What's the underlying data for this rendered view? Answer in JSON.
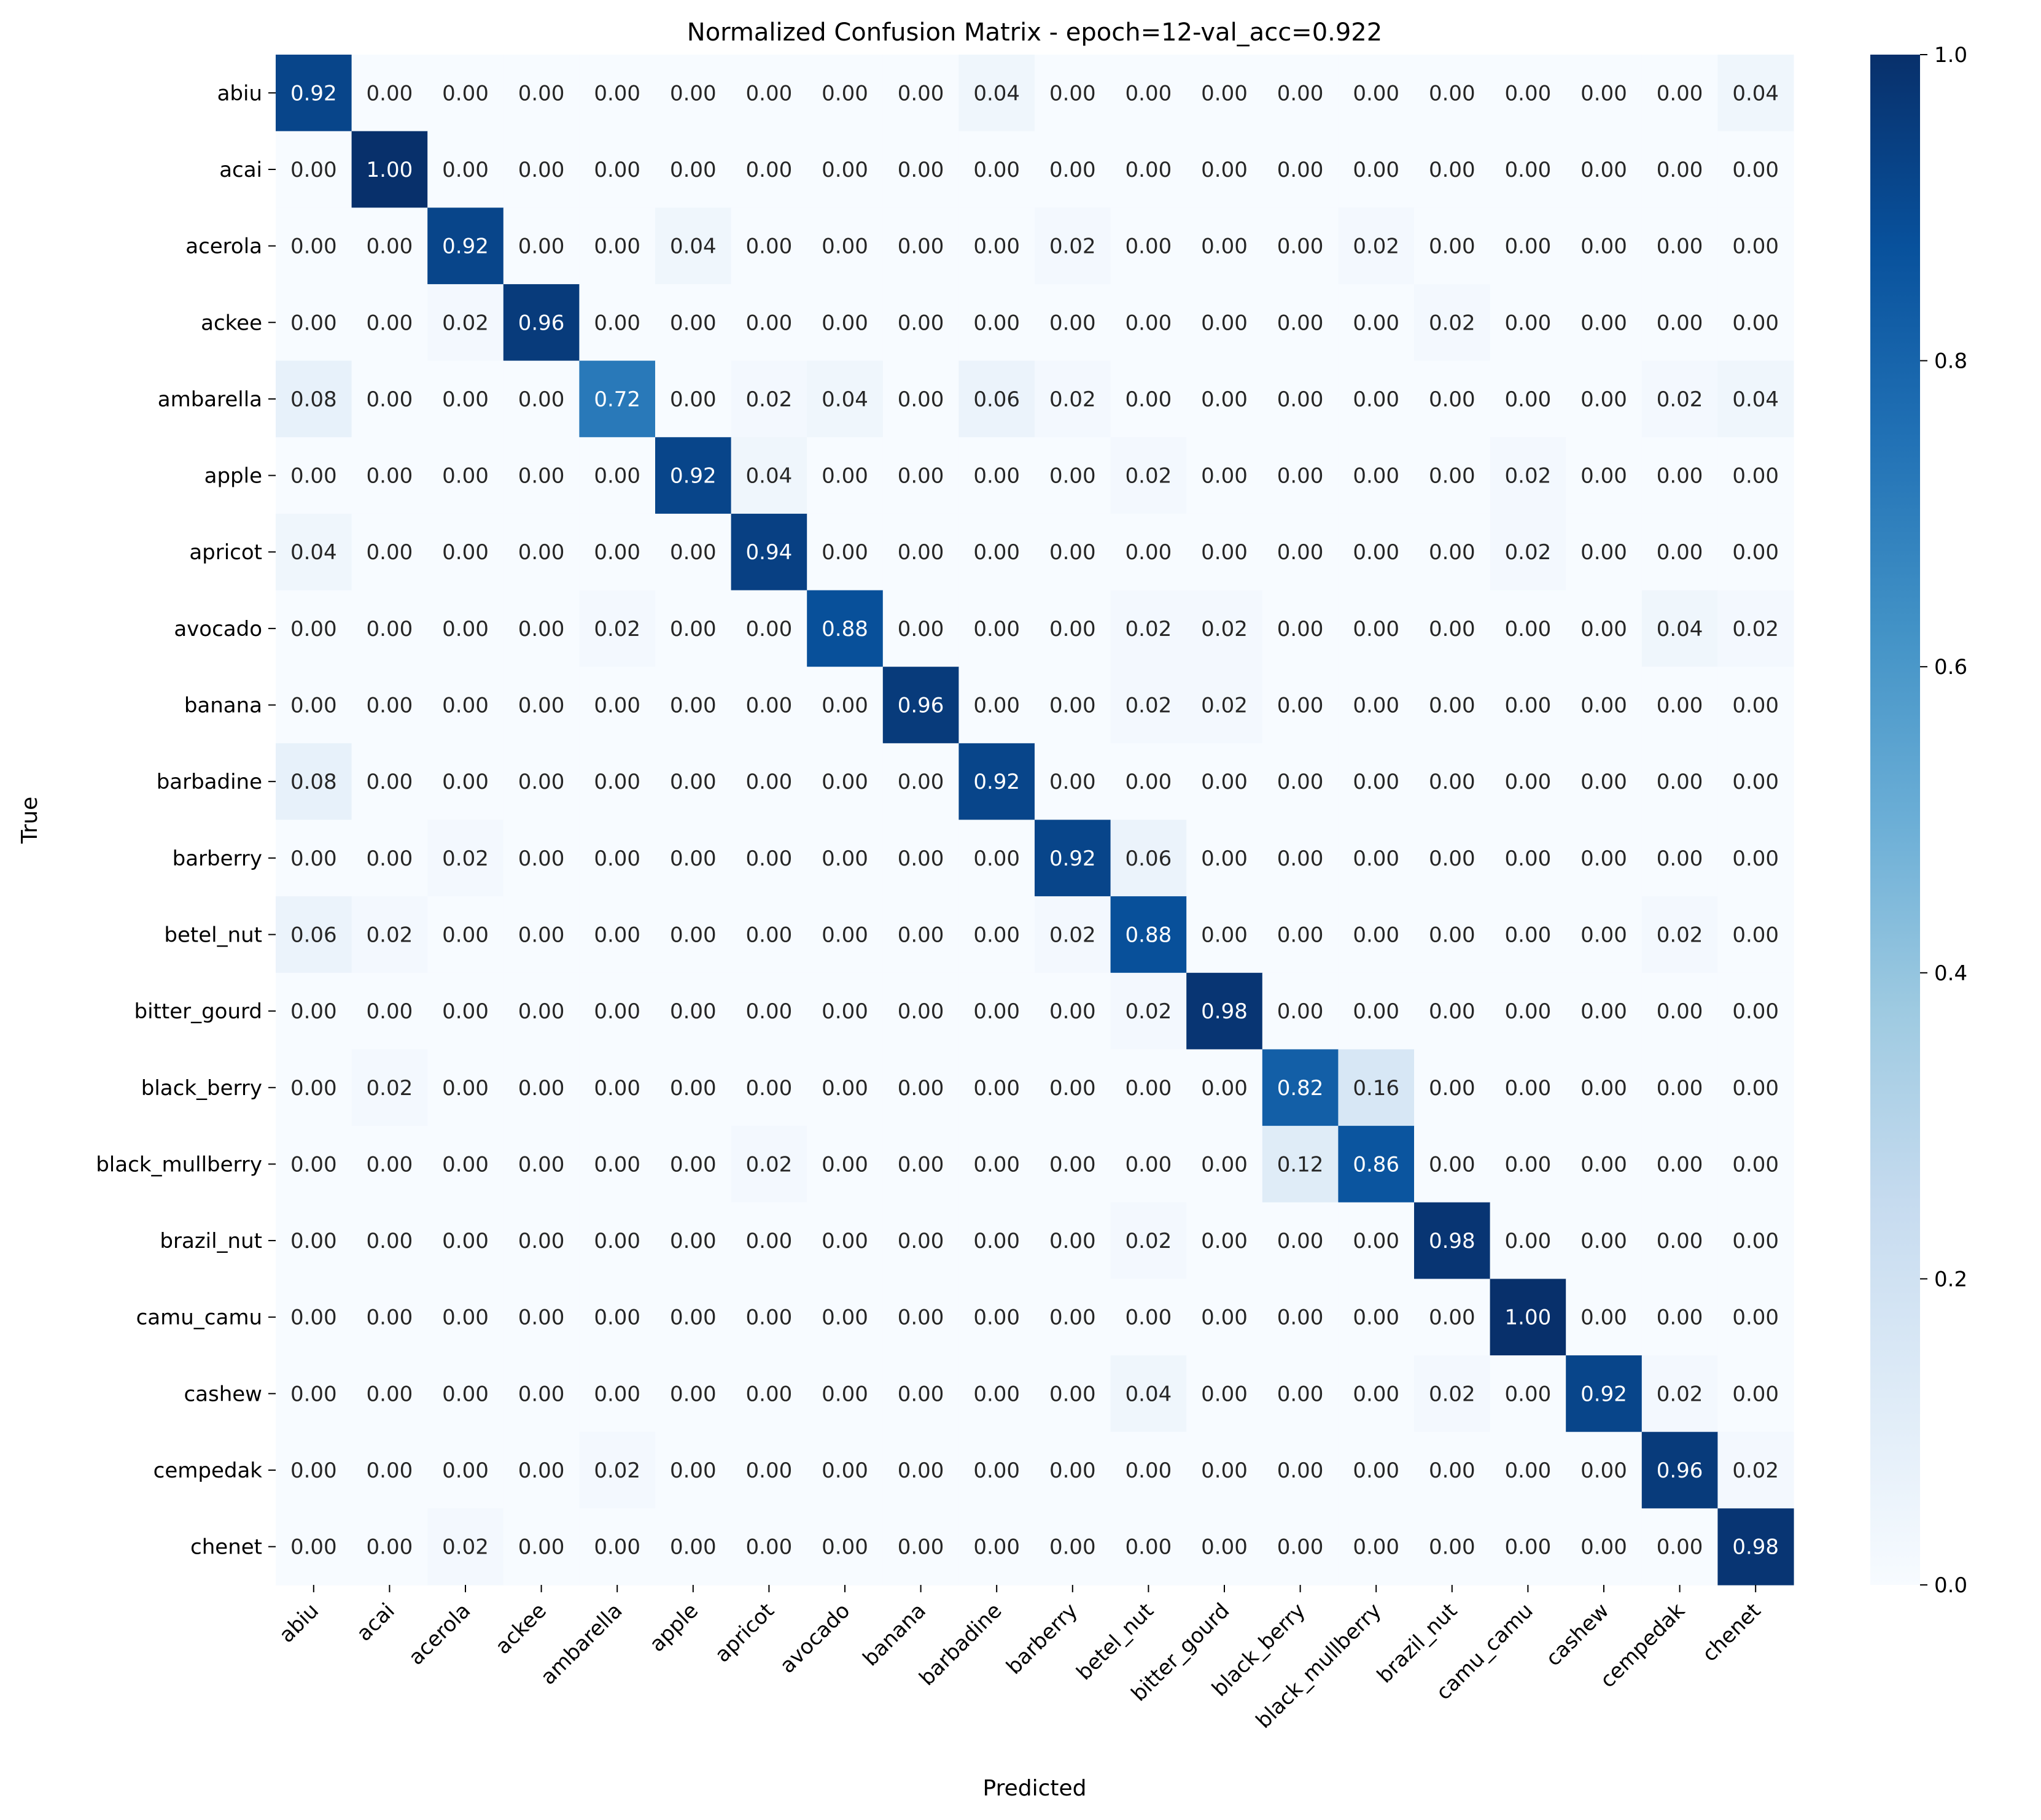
{
  "chart_data": {
    "type": "heatmap",
    "title": "Normalized Confusion Matrix - epoch=12-val_acc=0.922",
    "xlabel": "Predicted",
    "ylabel": "True",
    "colormap": "Blues",
    "vmin": 0.0,
    "vmax": 1.0,
    "colorbar_ticks": [
      "0.0",
      "0.2",
      "0.4",
      "0.6",
      "0.8",
      "1.0"
    ],
    "value_format": "0.00",
    "x_categories": [
      "abiu",
      "acai",
      "acerola",
      "ackee",
      "ambarella",
      "apple",
      "apricot",
      "avocado",
      "banana",
      "barbadine",
      "barberry",
      "betel_nut",
      "bitter_gourd",
      "black_berry",
      "black_mullberry",
      "brazil_nut",
      "camu_camu",
      "cashew",
      "cempedak",
      "chenet"
    ],
    "y_categories": [
      "abiu",
      "acai",
      "acerola",
      "ackee",
      "ambarella",
      "apple",
      "apricot",
      "avocado",
      "banana",
      "barbadine",
      "barberry",
      "betel_nut",
      "bitter_gourd",
      "black_berry",
      "black_mullberry",
      "brazil_nut",
      "camu_camu",
      "cashew",
      "cempedak",
      "chenet"
    ],
    "values": [
      [
        0.92,
        0,
        0,
        0,
        0,
        0,
        0,
        0,
        0,
        0.04,
        0,
        0,
        0,
        0,
        0,
        0,
        0,
        0,
        0,
        0.04
      ],
      [
        0,
        1.0,
        0,
        0,
        0,
        0,
        0,
        0,
        0,
        0,
        0,
        0,
        0,
        0,
        0,
        0,
        0,
        0,
        0,
        0
      ],
      [
        0,
        0,
        0.92,
        0,
        0,
        0.04,
        0,
        0,
        0,
        0,
        0.02,
        0,
        0,
        0,
        0.02,
        0,
        0,
        0,
        0,
        0
      ],
      [
        0,
        0,
        0.02,
        0.96,
        0,
        0,
        0,
        0,
        0,
        0,
        0,
        0,
        0,
        0,
        0,
        0.02,
        0,
        0,
        0,
        0
      ],
      [
        0.08,
        0,
        0,
        0,
        0.72,
        0,
        0.02,
        0.04,
        0,
        0.06,
        0.02,
        0,
        0,
        0,
        0,
        0,
        0,
        0,
        0.02,
        0.04
      ],
      [
        0,
        0,
        0,
        0,
        0,
        0.92,
        0.04,
        0,
        0,
        0,
        0,
        0.02,
        0,
        0,
        0,
        0,
        0.02,
        0,
        0,
        0
      ],
      [
        0.04,
        0,
        0,
        0,
        0,
        0,
        0.94,
        0,
        0,
        0,
        0,
        0,
        0,
        0,
        0,
        0,
        0.02,
        0,
        0,
        0
      ],
      [
        0,
        0,
        0,
        0,
        0.02,
        0,
        0,
        0.88,
        0,
        0,
        0,
        0.02,
        0.02,
        0,
        0,
        0,
        0,
        0,
        0.04,
        0.02
      ],
      [
        0,
        0,
        0,
        0,
        0,
        0,
        0,
        0,
        0.96,
        0,
        0,
        0.02,
        0.02,
        0,
        0,
        0,
        0,
        0,
        0,
        0
      ],
      [
        0.08,
        0,
        0,
        0,
        0,
        0,
        0,
        0,
        0,
        0.92,
        0,
        0,
        0,
        0,
        0,
        0,
        0,
        0,
        0,
        0
      ],
      [
        0,
        0,
        0.02,
        0,
        0,
        0,
        0,
        0,
        0,
        0,
        0.92,
        0.06,
        0,
        0,
        0,
        0,
        0,
        0,
        0,
        0
      ],
      [
        0.06,
        0.02,
        0,
        0,
        0,
        0,
        0,
        0,
        0,
        0,
        0.02,
        0.88,
        0,
        0,
        0,
        0,
        0,
        0,
        0.02,
        0
      ],
      [
        0,
        0,
        0,
        0,
        0,
        0,
        0,
        0,
        0,
        0,
        0,
        0.02,
        0.98,
        0,
        0,
        0,
        0,
        0,
        0,
        0
      ],
      [
        0,
        0.02,
        0,
        0,
        0,
        0,
        0,
        0,
        0,
        0,
        0,
        0,
        0,
        0.82,
        0.16,
        0,
        0,
        0,
        0,
        0
      ],
      [
        0,
        0,
        0,
        0,
        0,
        0,
        0.02,
        0,
        0,
        0,
        0,
        0,
        0,
        0.12,
        0.86,
        0,
        0,
        0,
        0,
        0
      ],
      [
        0,
        0,
        0,
        0,
        0,
        0,
        0,
        0,
        0,
        0,
        0,
        0.02,
        0,
        0,
        0,
        0.98,
        0,
        0,
        0,
        0
      ],
      [
        0,
        0,
        0,
        0,
        0,
        0,
        0,
        0,
        0,
        0,
        0,
        0,
        0,
        0,
        0,
        0,
        1.0,
        0,
        0,
        0
      ],
      [
        0,
        0,
        0,
        0,
        0,
        0,
        0,
        0,
        0,
        0,
        0,
        0.04,
        0,
        0,
        0,
        0.02,
        0,
        0.92,
        0.02,
        0
      ],
      [
        0,
        0,
        0,
        0,
        0.02,
        0,
        0,
        0,
        0,
        0,
        0,
        0,
        0,
        0,
        0,
        0,
        0,
        0,
        0.96,
        0.02
      ],
      [
        0,
        0,
        0.02,
        0,
        0,
        0,
        0,
        0,
        0,
        0,
        0,
        0,
        0,
        0,
        0,
        0,
        0,
        0,
        0,
        0.98
      ]
    ],
    "colors": {
      "low": "#f7fbff",
      "high": "#08306b",
      "annotation_dark": "#262626",
      "annotation_light": "#ffffff"
    }
  }
}
